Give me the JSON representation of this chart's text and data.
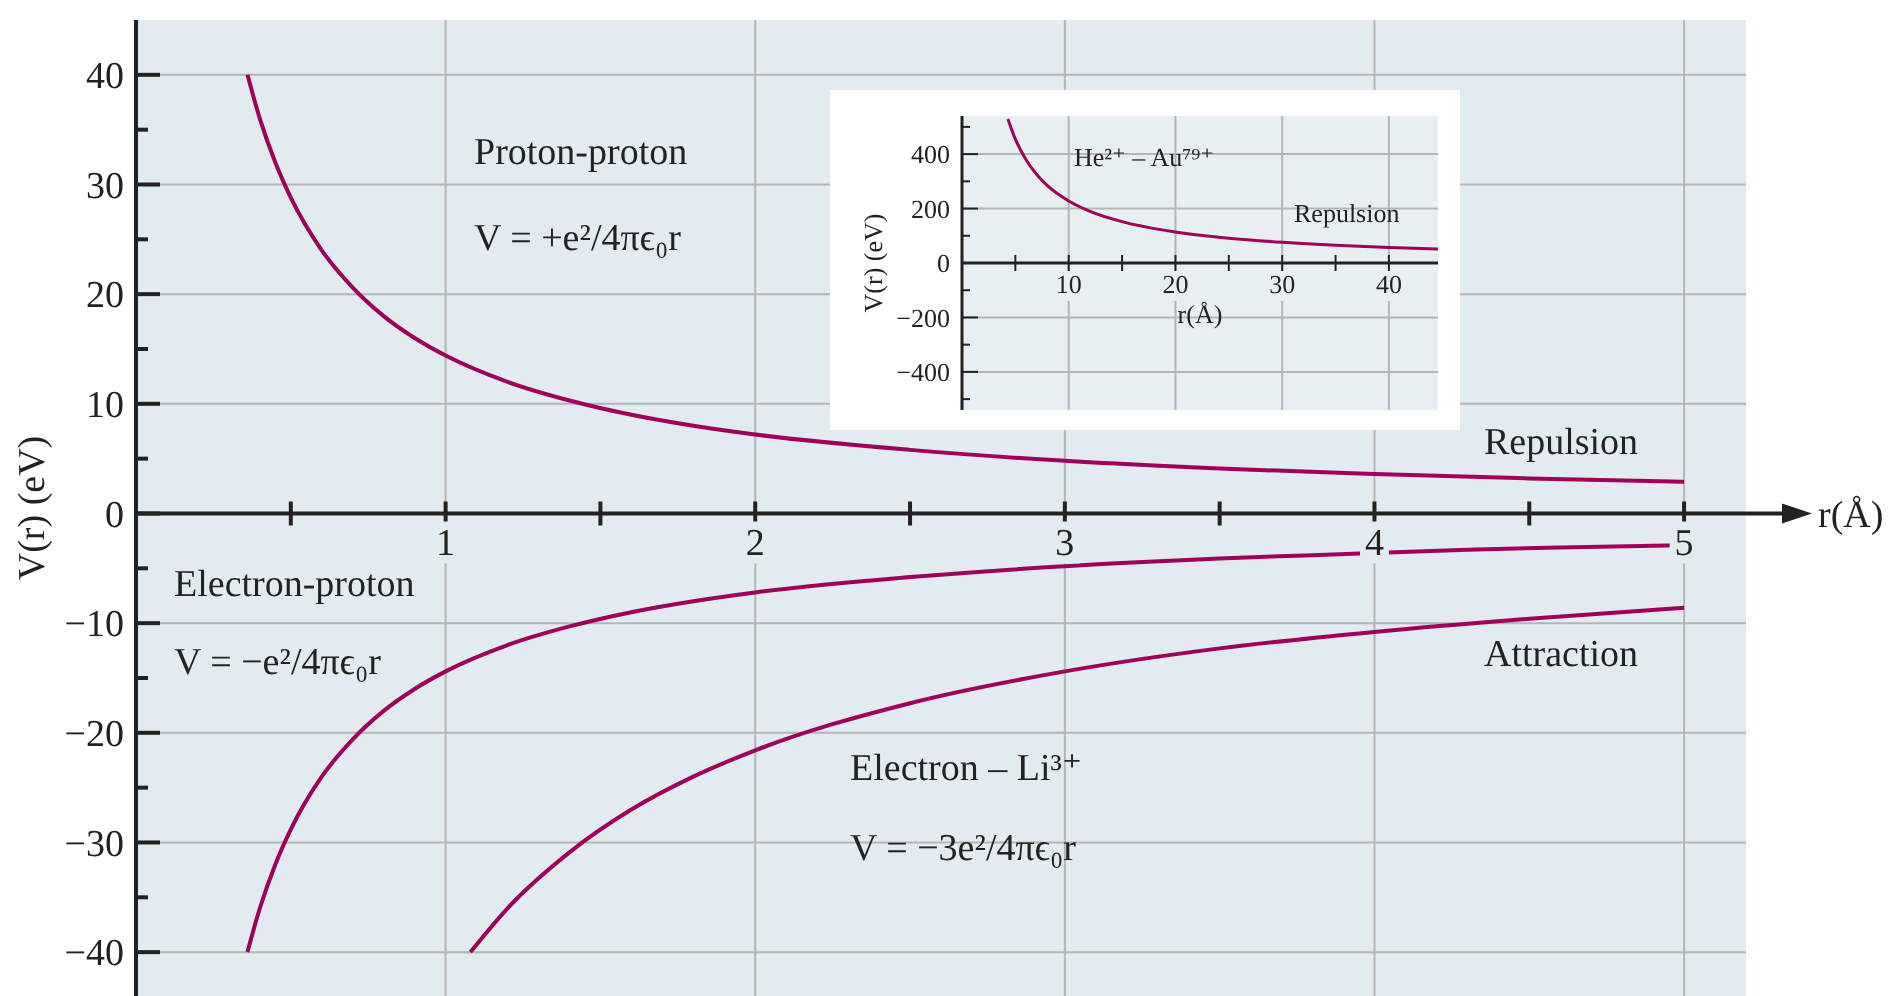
{
  "chart_data": [
    {
      "type": "line",
      "xlabel": "r(Å)",
      "ylabel": "V(r) (eV)",
      "xlim": [
        0,
        5.2
      ],
      "ylim": [
        -44,
        45
      ],
      "xticks": [
        {
          "value": 0.5,
          "label": null
        },
        1,
        {
          "value": 1.5,
          "label": null
        },
        2,
        {
          "value": 2.5,
          "label": null
        },
        3,
        {
          "value": 3.5,
          "label": null
        },
        4,
        {
          "value": 4.5,
          "label": null
        },
        5
      ],
      "yticks": [
        -40,
        {
          "value": -35,
          "label": null
        },
        -30,
        {
          "value": -25,
          "label": null
        },
        -20,
        {
          "value": -15,
          "label": null
        },
        -10,
        {
          "value": -5,
          "label": null
        },
        0,
        {
          "value": 5,
          "label": null
        },
        10,
        {
          "value": 15,
          "label": null
        },
        20,
        {
          "value": 25,
          "label": null
        },
        30,
        {
          "value": 35,
          "label": null
        },
        40
      ],
      "grid": true,
      "marker": "none",
      "line_style": "solid",
      "series": [
        {
          "color": "#a0005a",
          "x": [
            0.36,
            0.4,
            0.45,
            0.5,
            0.6,
            0.7,
            0.8,
            0.9,
            1,
            1.2,
            1.4,
            1.6,
            1.8,
            2,
            2.5,
            3,
            3.5,
            4,
            4.5,
            5
          ],
          "values": [
            40,
            36,
            32,
            28.8,
            24,
            20.6,
            18,
            16,
            14.4,
            12,
            10.3,
            9,
            8,
            7.2,
            5.8,
            4.8,
            4.1,
            3.6,
            3.2,
            2.9
          ]
        },
        {
          "color": "#a0005a",
          "x": [
            0.36,
            0.4,
            0.45,
            0.5,
            0.6,
            0.7,
            0.8,
            0.9,
            1,
            1.2,
            1.4,
            1.6,
            1.8,
            2,
            2.5,
            3.2,
            3.5,
            3.8,
            4.3,
            4.6,
            5
          ],
          "values": [
            -40,
            -36,
            -32,
            -28.8,
            -24,
            -20.6,
            -18,
            -16,
            -14.4,
            -12,
            -10.3,
            -9,
            -8,
            -7.2,
            -5.8,
            -4.5,
            -4.1,
            -3.8,
            -3.3,
            -3.1,
            -2.9
          ]
        },
        {
          "color": "#a0005a",
          "x": [
            1.08,
            1.2,
            1.4,
            1.6,
            1.8,
            2,
            2.5,
            3,
            3.5,
            4,
            4.5,
            5
          ],
          "values": [
            -40,
            -36,
            -30.9,
            -27,
            -24,
            -21.6,
            -17.3,
            -14.4,
            -12.3,
            -10.8,
            -9.6,
            -8.6
          ]
        }
      ],
      "annotations": [
        "Proton-proton",
        "V = +e²/4πϵ₀r",
        "Repulsion",
        "Electron-proton",
        "V = −e²/4πϵ₀r",
        "Attraction",
        "Electron – Li³⁺",
        "V = −3e²/4πϵ₀r"
      ]
    },
    {
      "type": "line",
      "xlabel": "r(Å)",
      "ylabel": "V(r) (eV)",
      "xlim": [
        0,
        44.6
      ],
      "ylim": [
        -540,
        540
      ],
      "xticks": [
        {
          "value": 5,
          "label": null
        },
        10,
        {
          "value": 15,
          "label": null
        },
        20,
        {
          "value": 25,
          "label": null
        },
        30,
        {
          "value": 35,
          "label": null
        },
        40
      ],
      "yticks": [
        {
          "value": -500,
          "label": null
        },
        -400,
        {
          "value": -300,
          "label": null
        },
        -200,
        {
          "value": -100,
          "label": null
        },
        0,
        {
          "value": 100,
          "label": null
        },
        200,
        {
          "value": 300,
          "label": null
        },
        400,
        {
          "value": 500,
          "label": null
        }
      ],
      "grid": true,
      "marker": "none",
      "line_style": "solid",
      "series": [
        {
          "color": "#a0005a",
          "x": [
            4.3,
            5,
            6,
            7,
            8,
            10,
            12,
            15,
            20,
            25,
            30,
            35,
            40,
            44.6
          ],
          "values": [
            529,
            455,
            379,
            325,
            284,
            228,
            190,
            152,
            114,
            91,
            76,
            65,
            57,
            51
          ]
        }
      ],
      "annotations": [
        "He²⁺ – Au⁷⁹⁺",
        "Repulsion"
      ]
    }
  ]
}
